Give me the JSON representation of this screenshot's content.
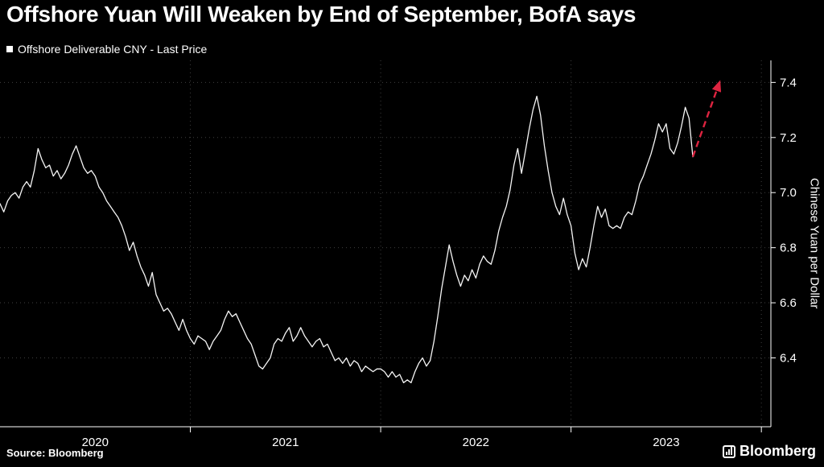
{
  "title": "Offshore Yuan Will Weaken by End of September, BofA says",
  "legend": {
    "label": "Offshore Deliverable CNY - Last Price",
    "marker_color": "#ffffff"
  },
  "source": "Source: Bloomberg",
  "watermark": "Bloomberg",
  "colors": {
    "background": "#000000",
    "line": "#f5f5f5",
    "forecast": "#de2440",
    "grid": "#3f3f3f",
    "axis": "#ffffff",
    "text": "#ffffff"
  },
  "chart_data": {
    "type": "line",
    "title": "Offshore Yuan Will Weaken by End of September, BofA says",
    "xlabel": "",
    "ylabel": "Chinese Yuan per Dollar",
    "grid": "dotted",
    "legend_position": "top-left",
    "xlim": [
      2020.0,
      2024.05
    ],
    "ylim": [
      6.15,
      7.48
    ],
    "y_ticks": [
      6.4,
      6.6,
      6.8,
      7.0,
      7.2,
      7.4
    ],
    "x_grid": [
      2021,
      2022,
      2023,
      2024
    ],
    "x_ticks": [
      2021,
      2022,
      2023,
      2024
    ],
    "x_tick_labels": [
      {
        "pos": 2020.5,
        "label": "2020"
      },
      {
        "pos": 2021.5,
        "label": "2021"
      },
      {
        "pos": 2022.5,
        "label": "2022"
      },
      {
        "pos": 2023.5,
        "label": "2023"
      }
    ],
    "series": [
      {
        "name": "Offshore Deliverable CNY - Last Price",
        "x_start": 2020.0,
        "x_end": 2023.64,
        "values": [
          6.96,
          6.93,
          6.97,
          6.99,
          7.0,
          6.98,
          7.02,
          7.04,
          7.02,
          7.08,
          7.16,
          7.12,
          7.09,
          7.1,
          7.06,
          7.08,
          7.05,
          7.07,
          7.1,
          7.14,
          7.17,
          7.13,
          7.09,
          7.07,
          7.08,
          7.06,
          7.02,
          7.0,
          6.97,
          6.95,
          6.93,
          6.91,
          6.88,
          6.84,
          6.79,
          6.82,
          6.77,
          6.73,
          6.7,
          6.66,
          6.71,
          6.63,
          6.6,
          6.57,
          6.58,
          6.56,
          6.53,
          6.5,
          6.54,
          6.5,
          6.47,
          6.45,
          6.48,
          6.47,
          6.46,
          6.43,
          6.46,
          6.48,
          6.5,
          6.54,
          6.57,
          6.55,
          6.56,
          6.53,
          6.5,
          6.47,
          6.45,
          6.41,
          6.37,
          6.36,
          6.38,
          6.4,
          6.45,
          6.47,
          6.46,
          6.49,
          6.51,
          6.46,
          6.48,
          6.51,
          6.48,
          6.46,
          6.44,
          6.46,
          6.47,
          6.44,
          6.45,
          6.42,
          6.39,
          6.4,
          6.38,
          6.4,
          6.37,
          6.39,
          6.38,
          6.35,
          6.37,
          6.36,
          6.35,
          6.36,
          6.36,
          6.35,
          6.33,
          6.35,
          6.33,
          6.34,
          6.31,
          6.32,
          6.31,
          6.35,
          6.38,
          6.4,
          6.37,
          6.39,
          6.46,
          6.55,
          6.65,
          6.73,
          6.81,
          6.75,
          6.7,
          6.66,
          6.7,
          6.68,
          6.72,
          6.69,
          6.74,
          6.77,
          6.75,
          6.74,
          6.79,
          6.86,
          6.91,
          6.95,
          7.01,
          7.1,
          7.16,
          7.07,
          7.15,
          7.23,
          7.3,
          7.35,
          7.28,
          7.17,
          7.08,
          7.0,
          6.95,
          6.92,
          6.98,
          6.92,
          6.88,
          6.78,
          6.72,
          6.76,
          6.73,
          6.8,
          6.88,
          6.95,
          6.91,
          6.94,
          6.88,
          6.87,
          6.88,
          6.87,
          6.91,
          6.93,
          6.92,
          6.97,
          7.03,
          7.06,
          7.1,
          7.14,
          7.19,
          7.25,
          7.22,
          7.25,
          7.16,
          7.14,
          7.18,
          7.24,
          7.31,
          7.27,
          7.13
        ]
      }
    ],
    "forecast_arrow": {
      "description": "BofA forecast: yuan weakens by end of September",
      "x": [
        2023.64,
        2023.78
      ],
      "y": [
        7.13,
        7.4
      ],
      "style": "dashed-arrow"
    }
  }
}
